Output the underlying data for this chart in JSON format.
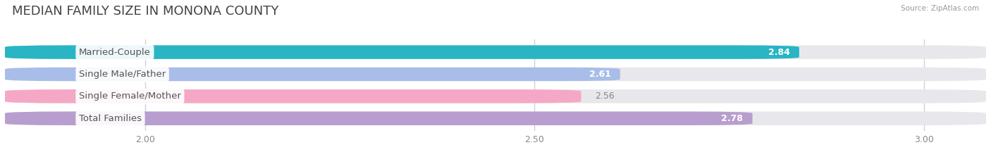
{
  "title": "MEDIAN FAMILY SIZE IN MONONA COUNTY",
  "source": "Source: ZipAtlas.com",
  "categories": [
    "Married-Couple",
    "Single Male/Father",
    "Single Female/Mother",
    "Total Families"
  ],
  "values": [
    2.84,
    2.61,
    2.56,
    2.78
  ],
  "bar_colors": [
    "#29b5c3",
    "#a8bde8",
    "#f5a8c5",
    "#b89ece"
  ],
  "value_inside": [
    true,
    true,
    false,
    true
  ],
  "value_color_inside": "white",
  "value_color_outside": "#888888",
  "xlim_left": 1.82,
  "xlim_right": 3.08,
  "xticks": [
    2.0,
    2.5,
    3.0
  ],
  "xtick_labels": [
    "2.00",
    "2.50",
    "3.00"
  ],
  "bar_height": 0.62,
  "figsize": [
    14.06,
    2.33
  ],
  "dpi": 100,
  "title_fontsize": 13,
  "label_fontsize": 9.5,
  "value_fontsize": 9,
  "tick_fontsize": 9,
  "bg_color": "#ffffff",
  "bar_bg_color": "#e8e8ec",
  "grid_color": "#d0d0d8"
}
